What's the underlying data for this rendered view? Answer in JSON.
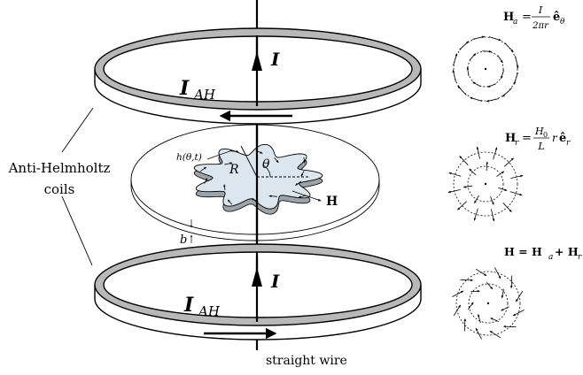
{
  "labels": {
    "current_top": "I",
    "current_bottom": "I",
    "coil_current_top_main": "I",
    "coil_current_top_sub": "AH",
    "coil_current_bottom_main": "I",
    "coil_current_bottom_sub": "AH",
    "coils_label_line1": "Anti-Helmholtz",
    "coils_label_line2": "coils",
    "wire_label": "straight wire",
    "interface_label": "h(θ,t)",
    "radius_label": "R",
    "angle_label": "θ",
    "field_label": "H",
    "gap_label": "b"
  },
  "equations": {
    "Ha_lhs": "H",
    "Ha_lhs_sub": "a",
    "Ha_eq": "=",
    "Ha_num": "I",
    "Ha_den": "2πr",
    "Ha_vec": "ê",
    "Ha_vec_sub": "θ",
    "Hr_lhs": "H",
    "Hr_lhs_sub": "r",
    "Hr_eq": "=",
    "Hr_num": "H",
    "Hr_num_sub": "0",
    "Hr_den": "L",
    "Hr_rest": "r",
    "Hr_vec": "ê",
    "Hr_vec_sub": "r",
    "H_total": "H = H",
    "H_total_sub1": "a",
    "H_total_plus": "+ H",
    "H_total_sub2": "r"
  },
  "colors": {
    "ring_fill": "#b8b8b8",
    "ring_side": "#ffffff",
    "droplet_fill": "#dce6ee",
    "droplet_side": "#9aa4aa",
    "stroke": "#000000"
  }
}
